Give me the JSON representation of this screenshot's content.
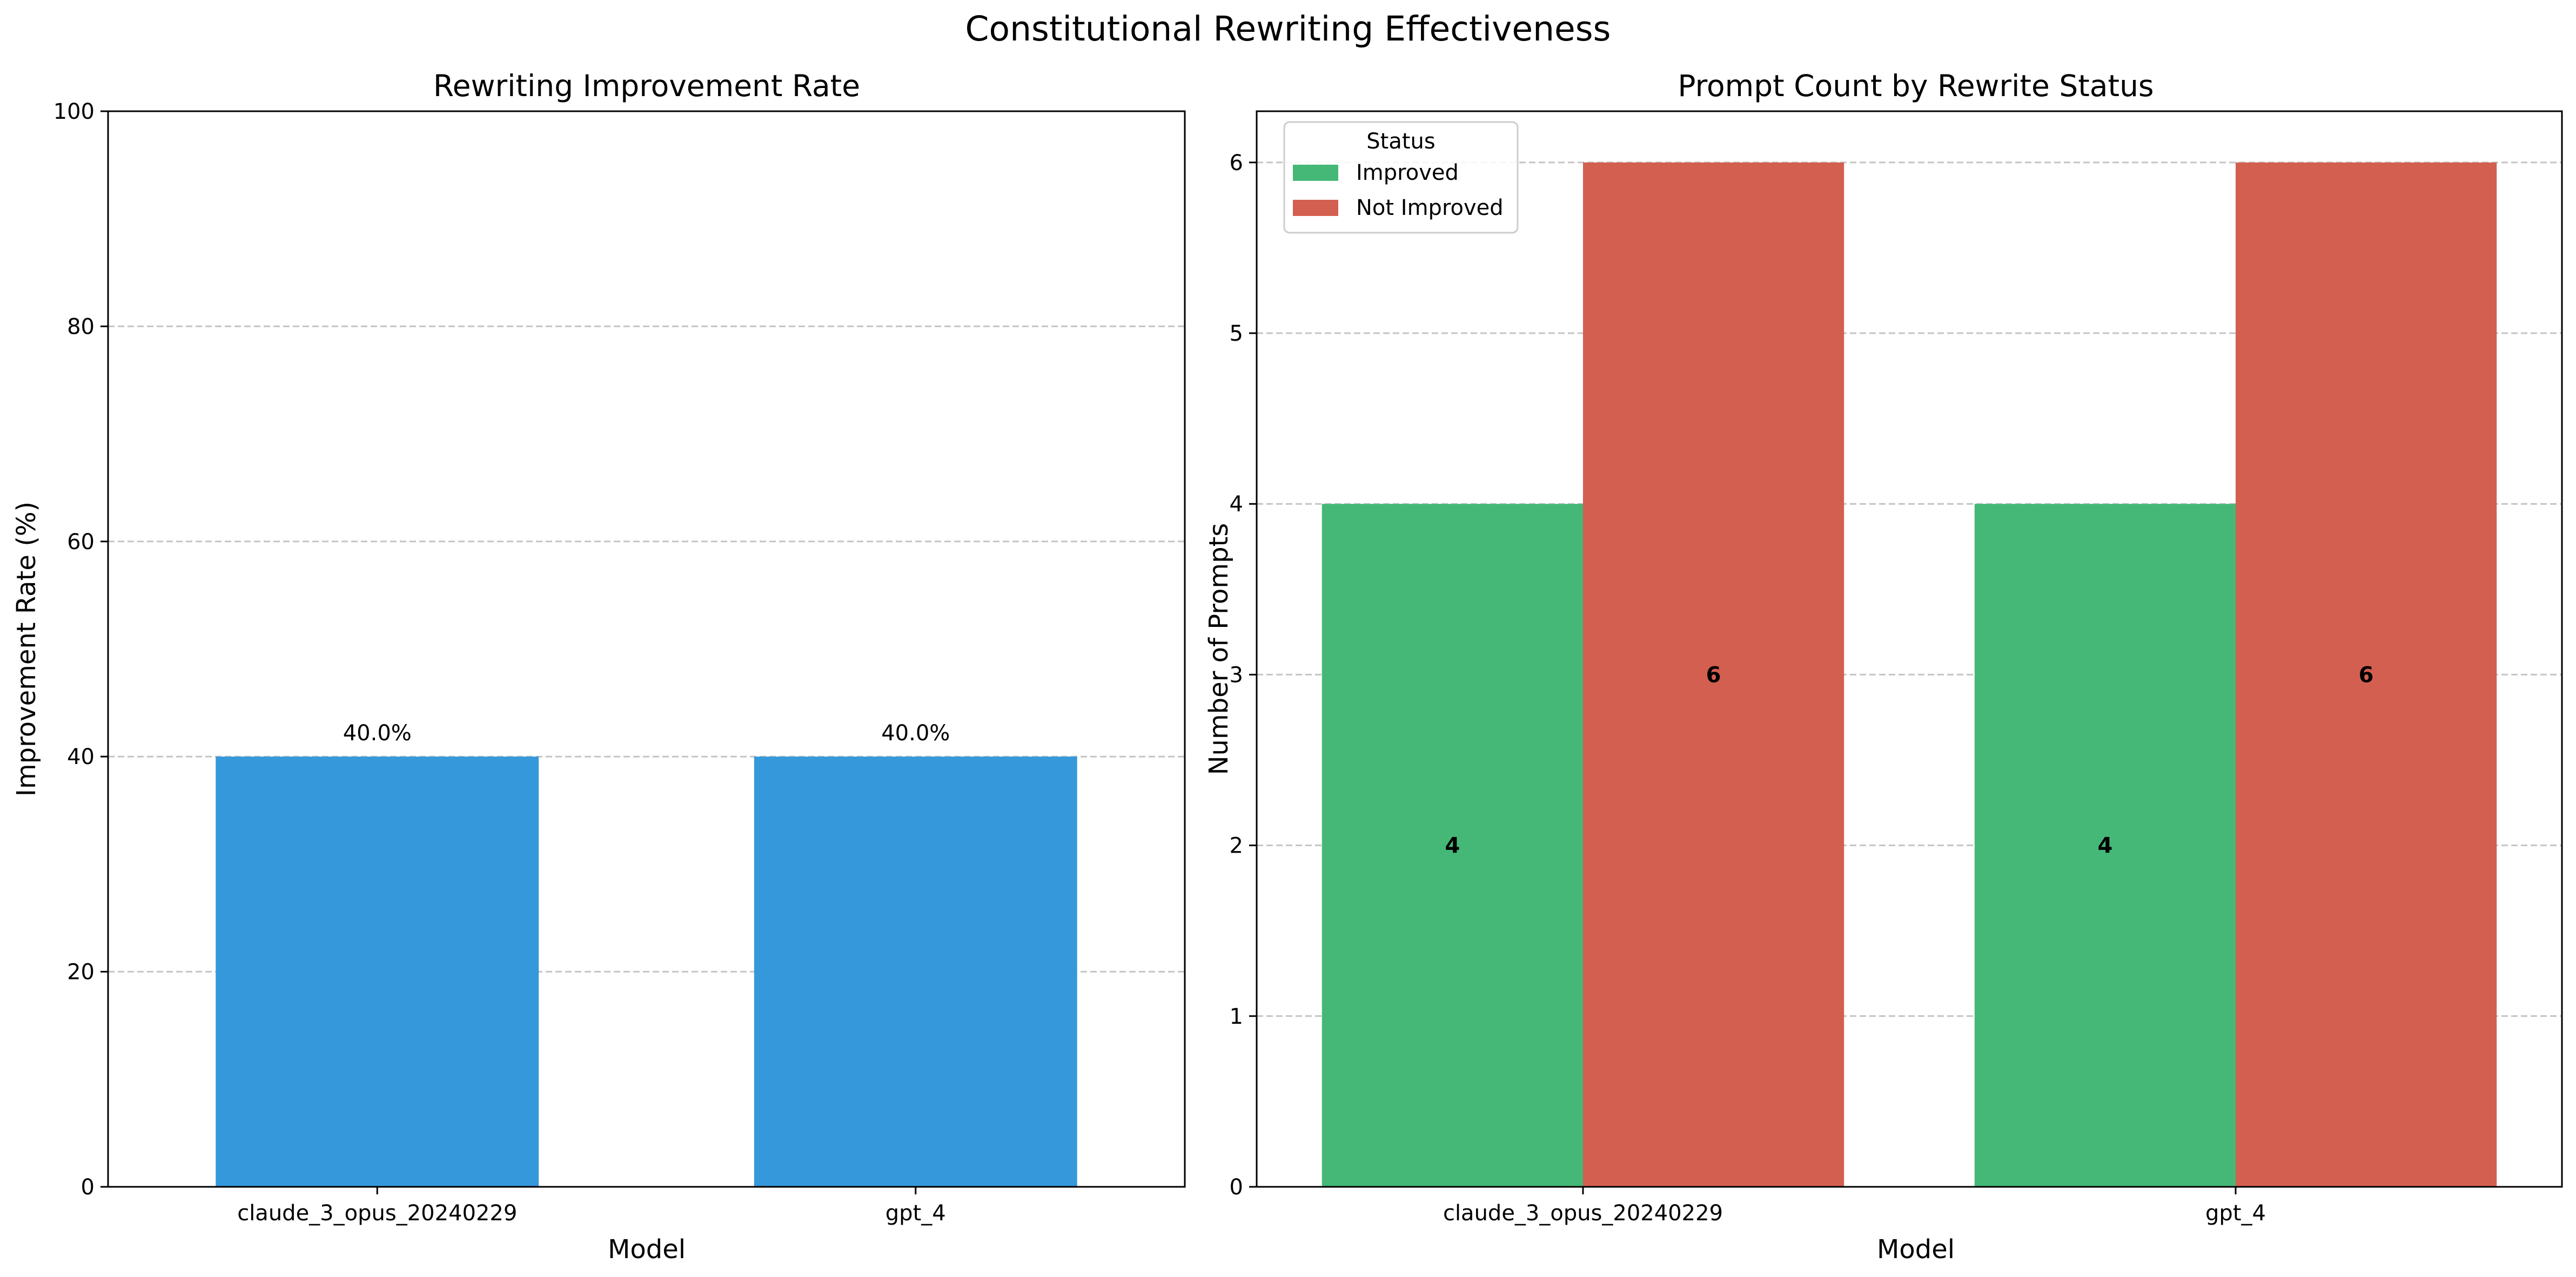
{
  "figure": {
    "title": "Constitutional Rewriting Effectiveness"
  },
  "chart_data": [
    {
      "type": "bar",
      "title": "Rewriting Improvement Rate",
      "xlabel": "Model",
      "ylabel": "Improvement Rate (%)",
      "categories": [
        "claude_3_opus_20240229",
        "gpt_4"
      ],
      "values": [
        40.0,
        40.0
      ],
      "value_labels": [
        "40.0%",
        "40.0%"
      ],
      "ylim": [
        0,
        100
      ],
      "yticks": [
        0,
        20,
        40,
        60,
        80,
        100
      ],
      "grid": "y, dashed",
      "legend": null,
      "color": "#3498db"
    },
    {
      "type": "bar",
      "title": "Prompt Count by Rewrite Status",
      "xlabel": "Model",
      "ylabel": "Number of Prompts",
      "categories": [
        "claude_3_opus_20240229",
        "gpt_4"
      ],
      "series": [
        {
          "name": "Improved",
          "values": [
            4,
            4
          ],
          "color": "#45b877"
        },
        {
          "name": "Not Improved",
          "values": [
            6,
            6
          ],
          "color": "#d35f51"
        }
      ],
      "ylim": [
        0,
        6.3
      ],
      "yticks": [
        0,
        1,
        2,
        3,
        4,
        5,
        6
      ],
      "grid": "y, dashed",
      "legend": {
        "title": "Status",
        "placement": "top-left"
      }
    }
  ]
}
